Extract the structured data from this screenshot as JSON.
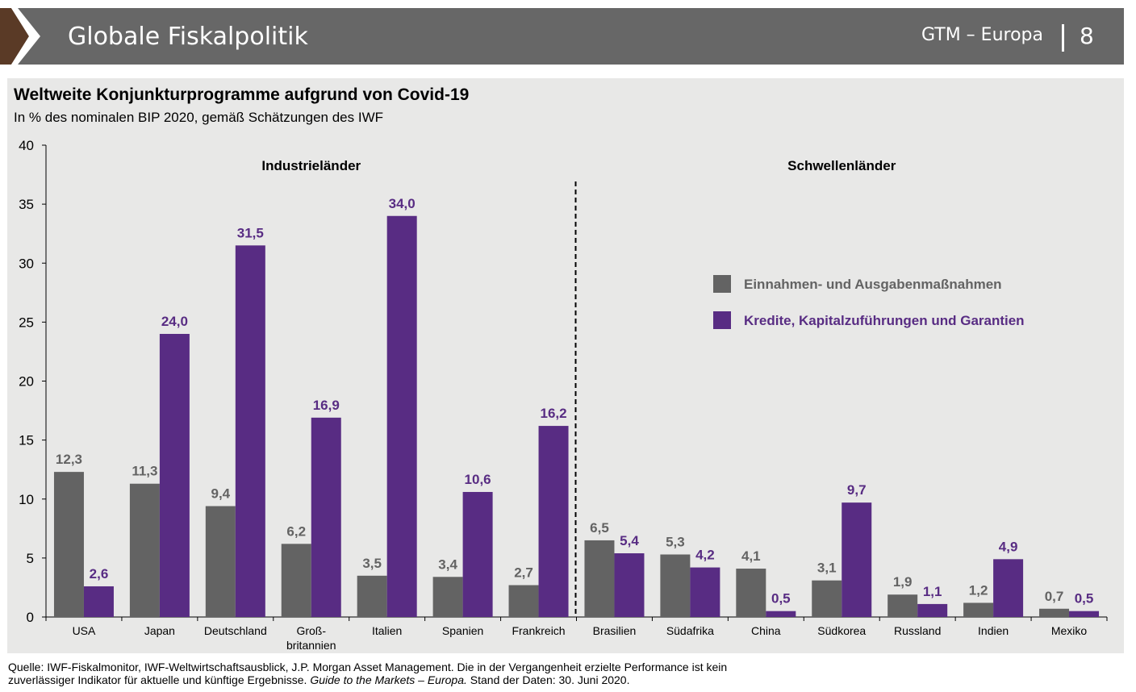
{
  "header": {
    "title": "Globale Fiskalpolitik",
    "right_label": "GTM – Europa",
    "page_number": "8"
  },
  "colors": {
    "banner": "#676767",
    "chevron": "#5a3a26",
    "series1": "#636363",
    "series2": "#582c83",
    "panel": "#e8e8e7"
  },
  "chart_data": {
    "type": "bar",
    "title": "Weltweite Konjunkturprogramme aufgrund von Covid-19",
    "subtitle": "In % des nominalen BIP 2020, gemäß Schätzungen des IWF",
    "ylim": [
      0,
      40
    ],
    "yticks": [
      0,
      5,
      10,
      15,
      20,
      25,
      30,
      35,
      40
    ],
    "categories": [
      "USA",
      "Japan",
      "Deutschland",
      "Groß-\nbritannien",
      "Italien",
      "Spanien",
      "Frankreich",
      "Brasilien",
      "Südafrika",
      "China",
      "Südkorea",
      "Russland",
      "Indien",
      "Mexiko"
    ],
    "series": [
      {
        "name": "Einnahmen- und Ausgabenmaßnahmen",
        "values": [
          12.3,
          11.3,
          9.4,
          6.2,
          3.5,
          3.4,
          2.7,
          6.5,
          5.3,
          4.1,
          3.1,
          1.9,
          1.2,
          0.7
        ],
        "labels": [
          "12,3",
          "11,3",
          "9,4",
          "6,2",
          "3,5",
          "3,4",
          "2,7",
          "6,5",
          "5,3",
          "4,1",
          "3,1",
          "1,9",
          "1,2",
          "0,7"
        ]
      },
      {
        "name": "Kredite, Kapitalzuführungen und Garantien",
        "values": [
          2.6,
          24.0,
          31.5,
          16.9,
          34.0,
          10.6,
          16.2,
          5.4,
          4.2,
          0.5,
          9.7,
          1.1,
          4.9,
          0.5
        ],
        "labels": [
          "2,6",
          "24,0",
          "31,5",
          "16,9",
          "34,0",
          "10,6",
          "16,2",
          "5,4",
          "4,2",
          "0,5",
          "9,7",
          "1,1",
          "4,9",
          "0,5"
        ]
      }
    ],
    "groups": [
      {
        "label": "Industrieländer",
        "count": 7
      },
      {
        "label": "Schwellenländer",
        "count": 7
      }
    ],
    "legend_position": "right",
    "grid": false
  },
  "footer": {
    "source_text": "Quelle: IWF-Fiskalmonitor, IWF-Weltwirtschaftsausblick, J.P. Morgan Asset Management. Die in der Vergangenheit erzielte Performance ist kein",
    "line2_prefix": "zuverlässiger Indikator für aktuelle und künftige Ergebnisse. ",
    "line2_italic": "Guide to the Markets – Europa.",
    "line2_suffix": " Stand der Daten: 30. Juni 2020."
  }
}
